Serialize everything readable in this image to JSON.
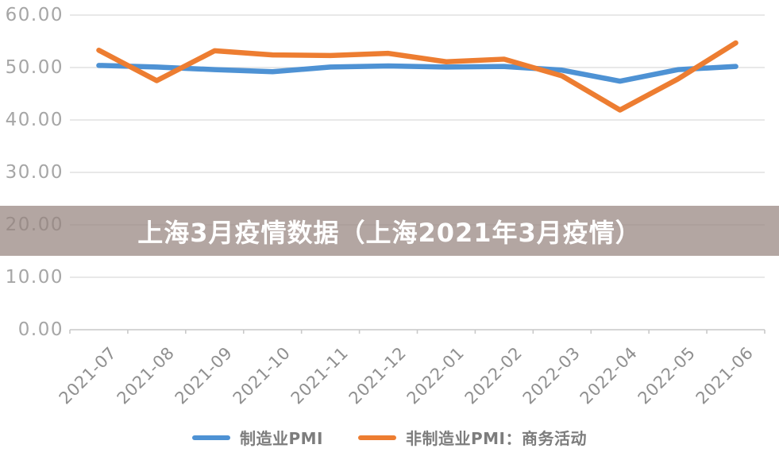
{
  "overlay": {
    "title": "上海3月疫情数据（上海2021年3月疫情）"
  },
  "chart_data": {
    "type": "line",
    "categories": [
      "2021-07",
      "2021-08",
      "2021-09",
      "2021-10",
      "2021-11",
      "2021-12",
      "2022-01",
      "2022-02",
      "2022-03",
      "2022-04",
      "2022-05",
      "2021-06"
    ],
    "series": [
      {
        "name": "制造业PMI",
        "color": "#4e92d4",
        "values": [
          50.4,
          50.1,
          49.6,
          49.2,
          50.1,
          50.3,
          50.1,
          50.2,
          49.5,
          47.4,
          49.6,
          50.2
        ]
      },
      {
        "name": "非制造业PMI：商务活动",
        "color": "#ed7d31",
        "values": [
          53.3,
          47.5,
          53.2,
          52.4,
          52.3,
          52.7,
          51.1,
          51.6,
          48.4,
          41.9,
          47.8,
          54.7
        ]
      }
    ],
    "title": "",
    "xlabel": "",
    "ylabel": "",
    "ylim": [
      0,
      60
    ],
    "yticks": [
      0,
      10,
      20,
      30,
      40,
      50,
      60
    ],
    "ytick_labels": [
      "0.00",
      "10.00",
      "20.00",
      "30.00",
      "40.00",
      "50.00",
      "60.00"
    ],
    "grid": true,
    "legend_position": "bottom",
    "x_label_rotation": -45
  },
  "colors": {
    "gridline": "#d9d9d9",
    "axis": "#c9c9c9",
    "y_label": "#a6a6a6",
    "x_label": "#8f8f8f",
    "legend_text": "#7d7d7d",
    "banner_overlay": "rgba(150,132,126,0.72)",
    "banner_title": "#ffffff",
    "background": "#ffffff"
  }
}
